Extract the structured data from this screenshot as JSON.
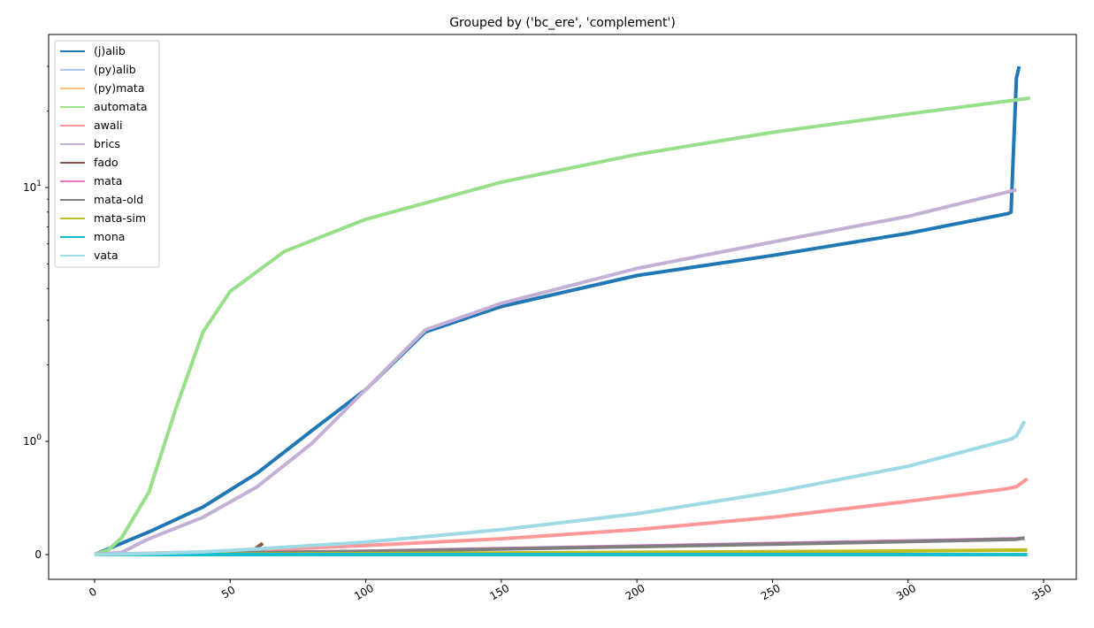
{
  "chart_data": {
    "type": "line",
    "title": "Grouped by ('bc_ere', 'complement')",
    "xlabel": "",
    "ylabel": "",
    "x_scale": "linear",
    "y_scale": "symlog",
    "xlim": [
      -17,
      360
    ],
    "ylim": [
      -0.2,
      40
    ],
    "x_ticks": [
      0,
      50,
      100,
      150,
      200,
      250,
      300,
      350
    ],
    "x_tick_labels": [
      "0",
      "50",
      "100",
      "150",
      "200",
      "250",
      "300",
      "350"
    ],
    "y_ticks": [
      0,
      1,
      10
    ],
    "y_tick_labels": [
      "0",
      "10^0",
      "10^1"
    ],
    "legend_position": "upper left",
    "grid": false,
    "series": [
      {
        "name": "(j)alib",
        "color": "#1f77b4",
        "points": [
          [
            0,
            0
          ],
          [
            5,
            0.05
          ],
          [
            20,
            0.2
          ],
          [
            40,
            0.42
          ],
          [
            60,
            0.72
          ],
          [
            80,
            1.1
          ],
          [
            100,
            1.6
          ],
          [
            122,
            2.7
          ],
          [
            150,
            3.4
          ],
          [
            200,
            4.5
          ],
          [
            250,
            5.4
          ],
          [
            300,
            6.6
          ],
          [
            337,
            7.9
          ],
          [
            338,
            8.0
          ],
          [
            339,
            15
          ],
          [
            340,
            27
          ],
          [
            341,
            30
          ]
        ]
      },
      {
        "name": "(py)alib",
        "color": "#aec7e8",
        "points": []
      },
      {
        "name": "(py)mata",
        "color": "#ffbb78",
        "points": []
      },
      {
        "name": "automata",
        "color": "#98df8a",
        "points": [
          [
            0,
            0
          ],
          [
            5,
            0.04
          ],
          [
            10,
            0.15
          ],
          [
            20,
            0.55
          ],
          [
            30,
            1.35
          ],
          [
            40,
            2.7
          ],
          [
            50,
            3.9
          ],
          [
            70,
            5.6
          ],
          [
            100,
            7.5
          ],
          [
            150,
            10.5
          ],
          [
            200,
            13.5
          ],
          [
            250,
            16.5
          ],
          [
            300,
            19.5
          ],
          [
            345,
            22.5
          ]
        ]
      },
      {
        "name": "awali",
        "color": "#ff9896",
        "points": [
          [
            0,
            0
          ],
          [
            50,
            0.03
          ],
          [
            100,
            0.08
          ],
          [
            150,
            0.14
          ],
          [
            200,
            0.22
          ],
          [
            250,
            0.33
          ],
          [
            300,
            0.47
          ],
          [
            336,
            0.58
          ],
          [
            340,
            0.6
          ],
          [
            344,
            0.67
          ]
        ]
      },
      {
        "name": "brics",
        "color": "#c5b0d5",
        "points": [
          [
            0,
            0
          ],
          [
            10,
            0.02
          ],
          [
            20,
            0.14
          ],
          [
            40,
            0.33
          ],
          [
            60,
            0.6
          ],
          [
            80,
            0.98
          ],
          [
            100,
            1.6
          ],
          [
            122,
            2.75
          ],
          [
            150,
            3.5
          ],
          [
            200,
            4.8
          ],
          [
            250,
            6.1
          ],
          [
            300,
            7.7
          ],
          [
            340,
            9.8
          ]
        ]
      },
      {
        "name": "fado",
        "color": "#8c564b",
        "points": [
          [
            50,
            0.01
          ],
          [
            58,
            0.03
          ],
          [
            62,
            0.1
          ]
        ]
      },
      {
        "name": "mata",
        "color": "#e377c2",
        "points": [
          [
            0,
            0
          ],
          [
            100,
            0.03
          ],
          [
            200,
            0.075
          ],
          [
            300,
            0.12
          ],
          [
            340,
            0.14
          ],
          [
            343,
            0.148
          ]
        ]
      },
      {
        "name": "mata-old",
        "color": "#7f7f7f",
        "points": [
          [
            0,
            0
          ],
          [
            100,
            0.028
          ],
          [
            200,
            0.07
          ],
          [
            300,
            0.115
          ],
          [
            340,
            0.135
          ],
          [
            343,
            0.145
          ]
        ]
      },
      {
        "name": "mata-sim",
        "color": "#bcbd22",
        "points": [
          [
            0,
            0
          ],
          [
            100,
            0.008
          ],
          [
            200,
            0.02
          ],
          [
            300,
            0.032
          ],
          [
            344,
            0.04
          ]
        ]
      },
      {
        "name": "mona",
        "color": "#17becf",
        "points": [
          [
            0,
            0
          ],
          [
            344,
            0
          ]
        ]
      },
      {
        "name": "vata",
        "color": "#9edae5",
        "points": [
          [
            0,
            0
          ],
          [
            20,
            0.01
          ],
          [
            40,
            0.024
          ],
          [
            60,
            0.05
          ],
          [
            80,
            0.08
          ],
          [
            100,
            0.11
          ],
          [
            150,
            0.22
          ],
          [
            200,
            0.36
          ],
          [
            250,
            0.55
          ],
          [
            300,
            0.78
          ],
          [
            338,
            1.02
          ],
          [
            340,
            1.05
          ],
          [
            343,
            1.2
          ]
        ]
      }
    ]
  }
}
